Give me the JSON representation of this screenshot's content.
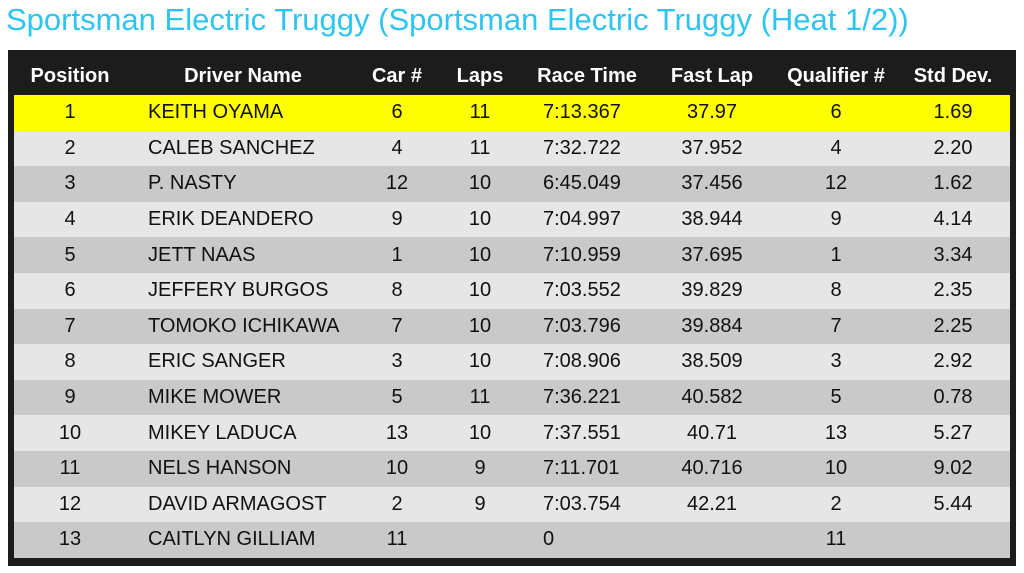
{
  "header": {
    "title": "Sportsman Electric Truggy (Sportsman Electric Truggy (Heat 1/2))"
  },
  "table": {
    "columns": [
      "Position",
      "Driver Name",
      "Car #",
      "Laps",
      "Race Time",
      "Fast Lap",
      "Qualifier #",
      "Std Dev."
    ],
    "rows": [
      {
        "position": "1",
        "driver": "KEITH OYAMA",
        "car": "6",
        "laps": "11",
        "race_time": "7:13.367",
        "fast_lap": "37.97",
        "qualifier": "6",
        "std_dev": "1.69"
      },
      {
        "position": "2",
        "driver": "CALEB SANCHEZ",
        "car": "4",
        "laps": "11",
        "race_time": "7:32.722",
        "fast_lap": "37.952",
        "qualifier": "4",
        "std_dev": "2.20"
      },
      {
        "position": "3",
        "driver": "P. NASTY",
        "car": "12",
        "laps": "10",
        "race_time": "6:45.049",
        "fast_lap": "37.456",
        "qualifier": "12",
        "std_dev": "1.62"
      },
      {
        "position": "4",
        "driver": "ERIK DEANDERO",
        "car": "9",
        "laps": "10",
        "race_time": "7:04.997",
        "fast_lap": "38.944",
        "qualifier": "9",
        "std_dev": "4.14"
      },
      {
        "position": "5",
        "driver": "JETT NAAS",
        "car": "1",
        "laps": "10",
        "race_time": "7:10.959",
        "fast_lap": "37.695",
        "qualifier": "1",
        "std_dev": "3.34"
      },
      {
        "position": "6",
        "driver": "JEFFERY BURGOS",
        "car": "8",
        "laps": "10",
        "race_time": "7:03.552",
        "fast_lap": "39.829",
        "qualifier": "8",
        "std_dev": "2.35"
      },
      {
        "position": "7",
        "driver": "TOMOKO ICHIKAWA",
        "car": "7",
        "laps": "10",
        "race_time": "7:03.796",
        "fast_lap": "39.884",
        "qualifier": "7",
        "std_dev": "2.25"
      },
      {
        "position": "8",
        "driver": "ERIC SANGER",
        "car": "3",
        "laps": "10",
        "race_time": "7:08.906",
        "fast_lap": "38.509",
        "qualifier": "3",
        "std_dev": "2.92"
      },
      {
        "position": "9",
        "driver": "MIKE MOWER",
        "car": "5",
        "laps": "11",
        "race_time": "7:36.221",
        "fast_lap": "40.582",
        "qualifier": "5",
        "std_dev": "0.78"
      },
      {
        "position": "10",
        "driver": "MIKEY LADUCA",
        "car": "13",
        "laps": "10",
        "race_time": "7:37.551",
        "fast_lap": "40.71",
        "qualifier": "13",
        "std_dev": "5.27"
      },
      {
        "position": "11",
        "driver": "NELS HANSON",
        "car": "10",
        "laps": "9",
        "race_time": "7:11.701",
        "fast_lap": "40.716",
        "qualifier": "10",
        "std_dev": "9.02"
      },
      {
        "position": "12",
        "driver": "DAVID ARMAGOST",
        "car": "2",
        "laps": "9",
        "race_time": "7:03.754",
        "fast_lap": "42.21",
        "qualifier": "2",
        "std_dev": "5.44"
      },
      {
        "position": "13",
        "driver": "CAITLYN GILLIAM",
        "car": "11",
        "race_time": "0",
        "qualifier": "11"
      }
    ]
  }
}
